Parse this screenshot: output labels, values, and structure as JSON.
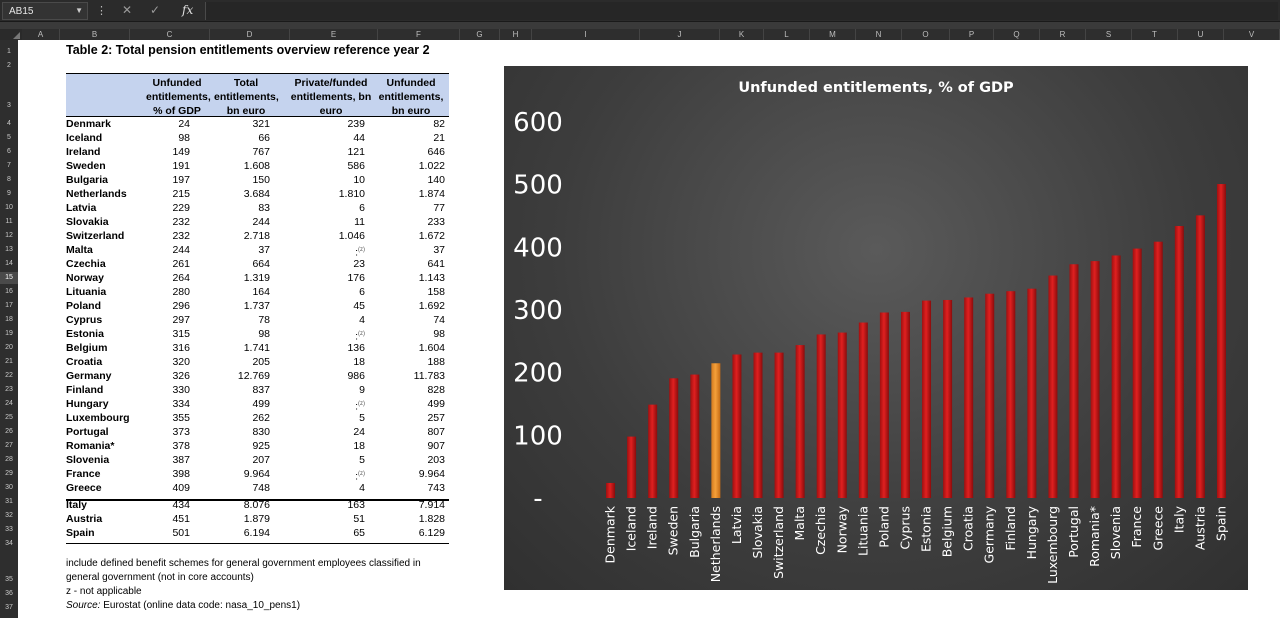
{
  "formula_bar": {
    "name_box": "AB15",
    "fx_label": "fx"
  },
  "columns": [
    "A",
    "B",
    "C",
    "D",
    "E",
    "F",
    "G",
    "H",
    "I",
    "J",
    "K",
    "L",
    "M",
    "N",
    "O",
    "P",
    "Q",
    "R",
    "S",
    "T",
    "U",
    "V"
  ],
  "rows": [
    "1",
    "2",
    "3",
    "4",
    "5",
    "6",
    "7",
    "8",
    "9",
    "10",
    "11",
    "12",
    "13",
    "14",
    "15",
    "16",
    "17",
    "18",
    "19",
    "20",
    "21",
    "22",
    "23",
    "24",
    "25",
    "26",
    "27",
    "28",
    "29",
    "30",
    "31",
    "32",
    "33",
    "34",
    "35",
    "36",
    "37"
  ],
  "selected_row": "15",
  "table": {
    "title": "Table 2: Total pension entitlements overview reference year 2",
    "headers": [
      "Unfunded entitlements, % of GDP",
      "Total entitlements, bn euro",
      "Private/funded entitlements, bn euro",
      "Unfunded entitlements, bn euro"
    ],
    "rows": [
      {
        "country": "Denmark",
        "pct": "24",
        "total": "321",
        "private": "239",
        "unfunded": "82"
      },
      {
        "country": "Iceland",
        "pct": "98",
        "total": "66",
        "private": "44",
        "unfunded": "21"
      },
      {
        "country": "Ireland",
        "pct": "149",
        "total": "767",
        "private": "121",
        "unfunded": "646"
      },
      {
        "country": "Sweden",
        "pct": "191",
        "total": "1.608",
        "private": "586",
        "unfunded": "1.022"
      },
      {
        "country": "Bulgaria",
        "pct": "197",
        "total": "150",
        "private": "10",
        "unfunded": "140"
      },
      {
        "country": "Netherlands",
        "pct": "215",
        "total": "3.684",
        "private": "1.810",
        "unfunded": "1.874"
      },
      {
        "country": "Latvia",
        "pct": "229",
        "total": "83",
        "private": "6",
        "unfunded": "77"
      },
      {
        "country": "Slovakia",
        "pct": "232",
        "total": "244",
        "private": "11",
        "unfunded": "233"
      },
      {
        "country": "Switzerland",
        "pct": "232",
        "total": "2.718",
        "private": "1.046",
        "unfunded": "1.672"
      },
      {
        "country": "Malta",
        "pct": "244",
        "total": "37",
        "private": ":(z)",
        "unfunded": "37"
      },
      {
        "country": "Czechia",
        "pct": "261",
        "total": "664",
        "private": "23",
        "unfunded": "641"
      },
      {
        "country": "Norway",
        "pct": "264",
        "total": "1.319",
        "private": "176",
        "unfunded": "1.143"
      },
      {
        "country": "Lituania",
        "pct": "280",
        "total": "164",
        "private": "6",
        "unfunded": "158"
      },
      {
        "country": "Poland",
        "pct": "296",
        "total": "1.737",
        "private": "45",
        "unfunded": "1.692"
      },
      {
        "country": "Cyprus",
        "pct": "297",
        "total": "78",
        "private": "4",
        "unfunded": "74"
      },
      {
        "country": "Estonia",
        "pct": "315",
        "total": "98",
        "private": ":(z)",
        "unfunded": "98"
      },
      {
        "country": "Belgium",
        "pct": "316",
        "total": "1.741",
        "private": "136",
        "unfunded": "1.604"
      },
      {
        "country": "Croatia",
        "pct": "320",
        "total": "205",
        "private": "18",
        "unfunded": "188"
      },
      {
        "country": "Germany",
        "pct": "326",
        "total": "12.769",
        "private": "986",
        "unfunded": "11.783"
      },
      {
        "country": "Finland",
        "pct": "330",
        "total": "837",
        "private": "9",
        "unfunded": "828"
      },
      {
        "country": "Hungary",
        "pct": "334",
        "total": "499",
        "private": ":(z)",
        "unfunded": "499"
      },
      {
        "country": "Luxembourg",
        "pct": "355",
        "total": "262",
        "private": "5",
        "unfunded": "257"
      },
      {
        "country": "Portugal",
        "pct": "373",
        "total": "830",
        "private": "24",
        "unfunded": "807"
      },
      {
        "country": "Romania*",
        "pct": "378",
        "total": "925",
        "private": "18",
        "unfunded": "907"
      },
      {
        "country": "Slovenia",
        "pct": "387",
        "total": "207",
        "private": "5",
        "unfunded": "203"
      },
      {
        "country": "France",
        "pct": "398",
        "total": "9.964",
        "private": ":(z)",
        "unfunded": "9.964"
      },
      {
        "country": "Greece",
        "pct": "409",
        "total": "748",
        "private": "4",
        "unfunded": "743"
      },
      {
        "country": "Italy",
        "pct": "434",
        "total": "8.076",
        "private": "163",
        "unfunded": "7.914"
      },
      {
        "country": "Austria",
        "pct": "451",
        "total": "1.879",
        "private": "51",
        "unfunded": "1.828"
      },
      {
        "country": "Spain",
        "pct": "501",
        "total": "6.194",
        "private": "65",
        "unfunded": "6.129"
      }
    ],
    "notes": [
      "include defined benefit schemes for general government employees classified in",
      "general government (not in core accounts)",
      "z - not applicable"
    ],
    "source_label": "Source:",
    "source_text": "Eurostat (online data code: nasa_10_pens1)"
  },
  "chart_data": {
    "type": "bar",
    "title": "Unfunded entitlements, % of GDP",
    "categories": [
      "Denmark",
      "Iceland",
      "Ireland",
      "Sweden",
      "Bulgaria",
      "Netherlands",
      "Latvia",
      "Slovakia",
      "Switzerland",
      "Malta",
      "Czechia",
      "Norway",
      "Lituania",
      "Poland",
      "Cyprus",
      "Estonia",
      "Belgium",
      "Croatia",
      "Germany",
      "Finland",
      "Hungary",
      "Luxembourg",
      "Portugal",
      "Romania*",
      "Slovenia",
      "France",
      "Greece",
      "Italy",
      "Austria",
      "Spain"
    ],
    "values": [
      24,
      98,
      149,
      191,
      197,
      215,
      229,
      232,
      232,
      244,
      261,
      264,
      280,
      296,
      297,
      315,
      316,
      320,
      326,
      330,
      334,
      355,
      373,
      378,
      387,
      398,
      409,
      434,
      451,
      501
    ],
    "highlight_category": "Netherlands",
    "ylim": [
      0,
      600
    ],
    "yticks": [
      "-",
      "100",
      "200",
      "300",
      "400",
      "500",
      "600"
    ],
    "colors": {
      "bar": "#e02020",
      "highlight": "#f5a03a",
      "background": "#3f3f3f",
      "text": "#ffffff"
    },
    "grid": false
  }
}
